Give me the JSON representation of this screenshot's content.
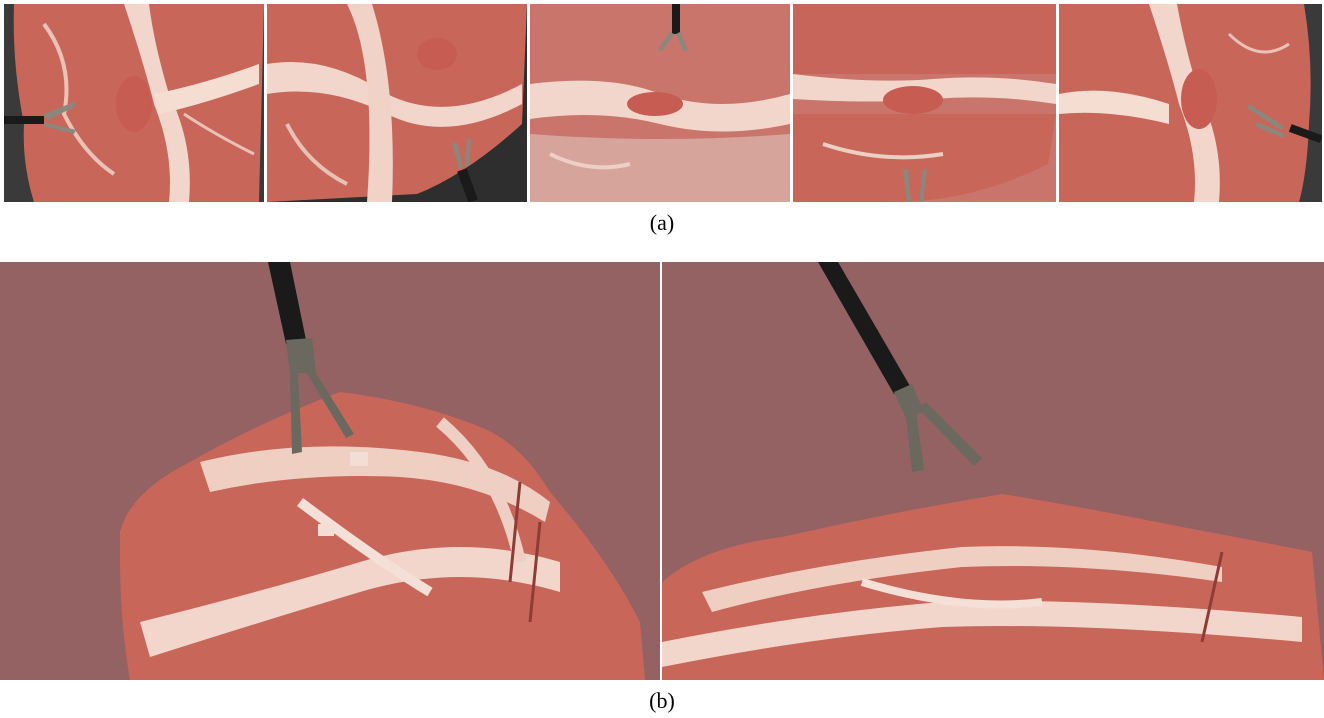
{
  "figure": {
    "panel_a": {
      "caption": "(a)",
      "image_count": 5,
      "description_icon": "camera-photo-icon"
    },
    "panel_b": {
      "caption": "(b)",
      "image_count": 2,
      "background_color": "#946262"
    }
  },
  "colors": {
    "meat_red": "#c9665a",
    "meat_dark": "#a94a42",
    "fat_white": "#f2d6cc",
    "tool_shaft": "#1a1a1a",
    "tool_jaw": "#6b6860",
    "render_bg": "#946262",
    "tray": "#3a3a3a"
  }
}
